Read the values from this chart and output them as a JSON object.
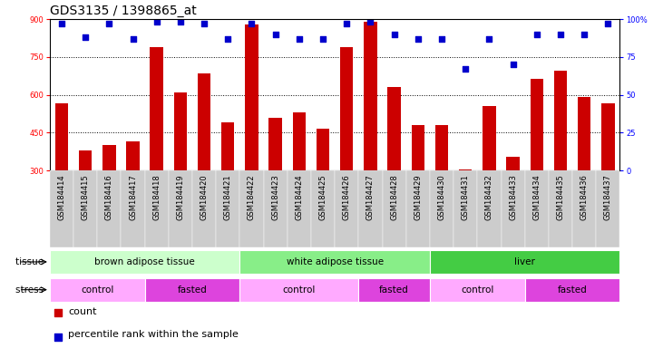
{
  "title": "GDS3135 / 1398865_at",
  "samples": [
    "GSM184414",
    "GSM184415",
    "GSM184416",
    "GSM184417",
    "GSM184418",
    "GSM184419",
    "GSM184420",
    "GSM184421",
    "GSM184422",
    "GSM184423",
    "GSM184424",
    "GSM184425",
    "GSM184426",
    "GSM184427",
    "GSM184428",
    "GSM184429",
    "GSM184430",
    "GSM184431",
    "GSM184432",
    "GSM184433",
    "GSM184434",
    "GSM184435",
    "GSM184436",
    "GSM184437"
  ],
  "counts": [
    565,
    380,
    400,
    415,
    790,
    610,
    685,
    490,
    880,
    510,
    530,
    465,
    790,
    890,
    630,
    480,
    480,
    305,
    555,
    355,
    665,
    695,
    590,
    565
  ],
  "percentiles": [
    97,
    88,
    97,
    87,
    98,
    98,
    97,
    87,
    97,
    90,
    87,
    87,
    97,
    98,
    90,
    87,
    87,
    67,
    87,
    70,
    90,
    90,
    90,
    97
  ],
  "bar_color": "#cc0000",
  "dot_color": "#0000cc",
  "ylim_left": [
    300,
    900
  ],
  "ylim_right": [
    0,
    100
  ],
  "yticks_left": [
    300,
    450,
    600,
    750,
    900
  ],
  "yticks_right": [
    0,
    25,
    50,
    75,
    100
  ],
  "gridline_vals": [
    750,
    600,
    450
  ],
  "tissue_groups": [
    {
      "label": "brown adipose tissue",
      "start": 0,
      "end": 8,
      "color": "#ccffcc"
    },
    {
      "label": "white adipose tissue",
      "start": 8,
      "end": 16,
      "color": "#88ee88"
    },
    {
      "label": "liver",
      "start": 16,
      "end": 24,
      "color": "#44cc44"
    }
  ],
  "stress_groups": [
    {
      "label": "control",
      "start": 0,
      "end": 4,
      "color": "#ffaaff"
    },
    {
      "label": "fasted",
      "start": 4,
      "end": 8,
      "color": "#dd44dd"
    },
    {
      "label": "control",
      "start": 8,
      "end": 13,
      "color": "#ffaaff"
    },
    {
      "label": "fasted",
      "start": 13,
      "end": 16,
      "color": "#dd44dd"
    },
    {
      "label": "control",
      "start": 16,
      "end": 20,
      "color": "#ffaaff"
    },
    {
      "label": "fasted",
      "start": 20,
      "end": 24,
      "color": "#dd44dd"
    }
  ],
  "bar_width": 0.55,
  "background_color": "#ffffff",
  "xlabel_bg_color": "#cccccc",
  "title_fontsize": 10,
  "tick_fontsize": 6,
  "row_fontsize": 7.5,
  "legend_fontsize": 8
}
